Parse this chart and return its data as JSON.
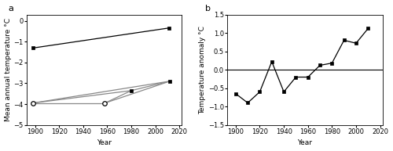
{
  "panel_a": {
    "upper_line": {
      "x": [
        1898,
        2011
      ],
      "y": [
        -1.31,
        -0.35
      ]
    },
    "lower_lines": [
      {
        "x": [
          1898,
          1958
        ],
        "y": [
          -3.95,
          -3.95
        ]
      },
      {
        "x": [
          1898,
          1980
        ],
        "y": [
          -3.95,
          -3.35
        ]
      },
      {
        "x": [
          1898,
          2012
        ],
        "y": [
          -3.95,
          -2.9
        ]
      },
      {
        "x": [
          1958,
          1980
        ],
        "y": [
          -3.95,
          -3.35
        ]
      },
      {
        "x": [
          1958,
          2012
        ],
        "y": [
          -3.95,
          -2.9
        ]
      },
      {
        "x": [
          1980,
          2012
        ],
        "y": [
          -3.35,
          -2.9
        ]
      }
    ],
    "open_circles": {
      "x": [
        1898,
        1958
      ],
      "y": [
        -3.95,
        -3.95
      ]
    },
    "filled_squares": {
      "x": [
        1980,
        2012,
        2012
      ],
      "y": [
        -3.35,
        -2.9,
        -2.9
      ]
    },
    "ylabel": "Mean annual temperature °C",
    "xlabel": "Year",
    "ylim": [
      -5,
      0.3
    ],
    "xlim": [
      1893,
      2022
    ],
    "yticks": [
      0,
      -1,
      -2,
      -3,
      -4,
      -5
    ],
    "xticks": [
      1900,
      1920,
      1940,
      1960,
      1980,
      2000,
      2020
    ]
  },
  "panel_b": {
    "x": [
      1900,
      1910,
      1920,
      1930,
      1940,
      1950,
      1960,
      1970,
      1980,
      1990,
      2000,
      2010
    ],
    "y": [
      -0.65,
      -0.9,
      -0.6,
      0.22,
      -0.6,
      -0.2,
      -0.2,
      0.12,
      0.18,
      0.8,
      0.72,
      1.12
    ],
    "zero_line_y": 0.0,
    "ylabel": "Temperature anomaly °C",
    "xlabel": "Year",
    "ylim": [
      -1.5,
      1.5
    ],
    "xlim": [
      1893,
      2022
    ],
    "yticks": [
      -1.5,
      -1.0,
      -0.5,
      0.0,
      0.5,
      1.0,
      1.5
    ],
    "xticks": [
      1900,
      1920,
      1940,
      1960,
      1980,
      2000,
      2020
    ]
  },
  "label_fontsize": 6.5,
  "tick_fontsize": 6,
  "line_color": "#888888",
  "background_color": "#ffffff"
}
